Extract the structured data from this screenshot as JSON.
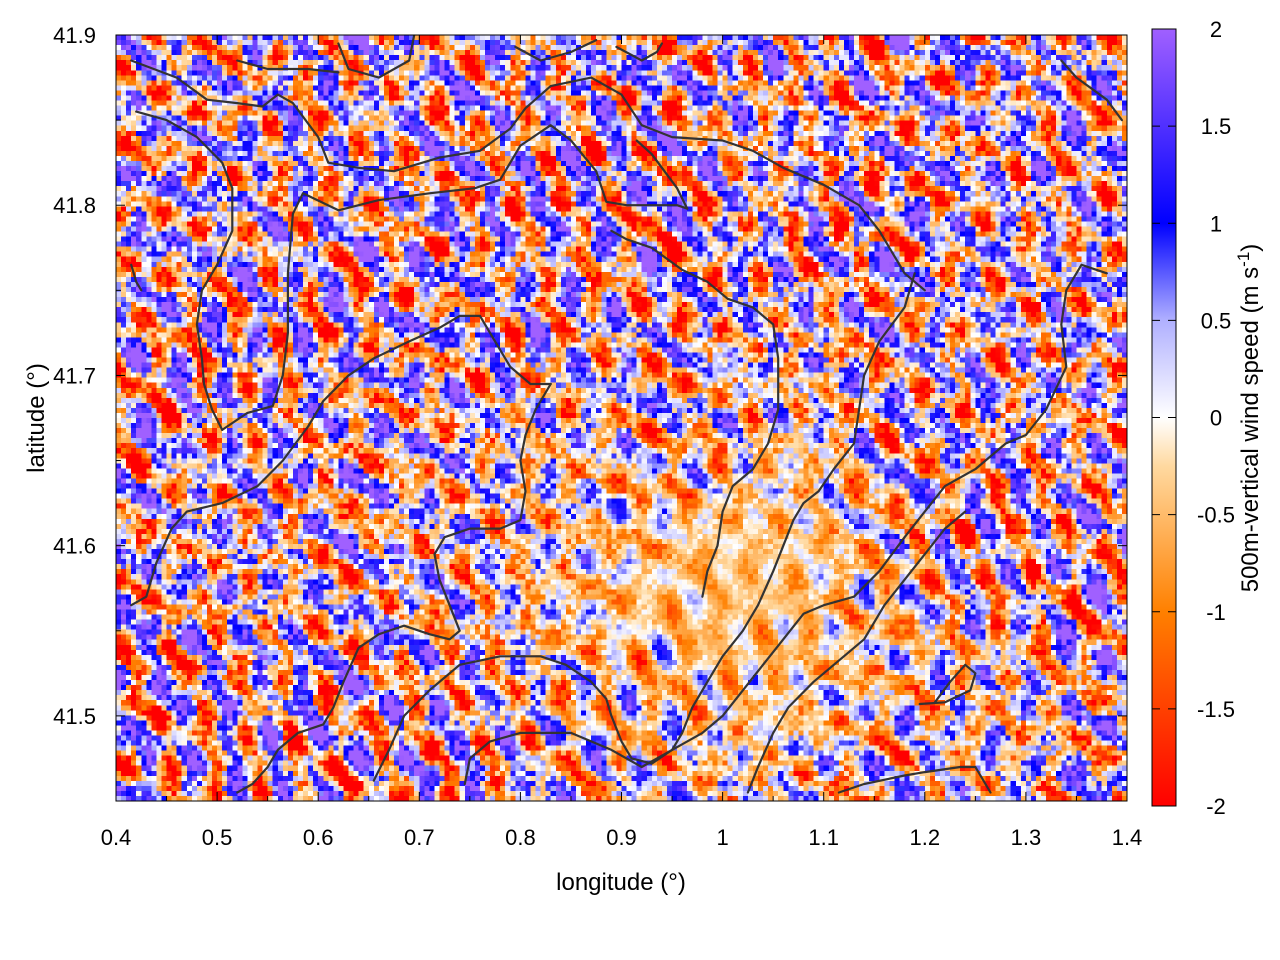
{
  "chart_data": {
    "type": "heatmap",
    "title": "",
    "xlabel": "longitude (°)",
    "ylabel": "latitude (°)",
    "colorbar": {
      "label_main": "500m-vertical wind speed (m s",
      "label_sup": "-1",
      "label_close": ")",
      "range": [
        -2,
        2
      ],
      "ticks": [
        {
          "value": 2,
          "label": "2"
        },
        {
          "value": 1.5,
          "label": "1.5"
        },
        {
          "value": 1,
          "label": "1"
        },
        {
          "value": 0.5,
          "label": "0.5"
        },
        {
          "value": 0,
          "label": "0"
        },
        {
          "value": -0.5,
          "label": "-0.5"
        },
        {
          "value": -1,
          "label": "-1"
        },
        {
          "value": -1.5,
          "label": "-1.5"
        },
        {
          "value": -2,
          "label": "-2"
        }
      ],
      "colors": [
        {
          "value": -2,
          "color": "#ff0000"
        },
        {
          "value": -1,
          "color": "#ff8000"
        },
        {
          "value": -0.25,
          "color": "#ffd9a0"
        },
        {
          "value": 0,
          "color": "#ffffff"
        },
        {
          "value": 0.5,
          "color": "#b0b0ff"
        },
        {
          "value": 1,
          "color": "#0000ff"
        },
        {
          "value": 2,
          "color": "#a060ff"
        }
      ]
    },
    "x_range": [
      0.4,
      1.4
    ],
    "y_range": [
      41.45,
      41.9
    ],
    "x_ticks": [
      {
        "value": 0.4,
        "label": "0.4"
      },
      {
        "value": 0.5,
        "label": "0.5"
      },
      {
        "value": 0.6,
        "label": "0.6"
      },
      {
        "value": 0.7,
        "label": "0.7"
      },
      {
        "value": 0.8,
        "label": "0.8"
      },
      {
        "value": 0.9,
        "label": "0.9"
      },
      {
        "value": 1.0,
        "label": "1"
      },
      {
        "value": 1.1,
        "label": "1.1"
      },
      {
        "value": 1.2,
        "label": "1.2"
      },
      {
        "value": 1.3,
        "label": "1.3"
      },
      {
        "value": 1.4,
        "label": "1.4"
      }
    ],
    "y_ticks": [
      {
        "value": 41.5,
        "label": "41.5"
      },
      {
        "value": 41.6,
        "label": "41.6"
      },
      {
        "value": 41.7,
        "label": "41.7"
      },
      {
        "value": 41.8,
        "label": "41.8"
      },
      {
        "value": 41.9,
        "label": "41.9"
      }
    ],
    "grid": false,
    "field_note_values_range": [
      -2,
      2
    ],
    "contours": [
      [
        [
          0.415,
          41.885
        ],
        [
          0.46,
          41.875
        ],
        [
          0.49,
          41.862
        ],
        [
          0.52,
          41.86
        ],
        [
          0.545,
          41.858
        ],
        [
          0.56,
          41.865
        ],
        [
          0.575,
          41.86
        ],
        [
          0.6,
          41.84
        ],
        [
          0.61,
          41.825
        ],
        [
          0.64,
          41.822
        ],
        [
          0.675,
          41.82
        ],
        [
          0.72,
          41.828
        ],
        [
          0.76,
          41.832
        ],
        [
          0.79,
          41.845
        ],
        [
          0.805,
          41.857
        ],
        [
          0.83,
          41.87
        ],
        [
          0.87,
          41.875
        ],
        [
          0.9,
          41.865
        ],
        [
          0.92,
          41.847
        ],
        [
          0.95,
          41.84
        ],
        [
          1.0,
          41.838
        ],
        [
          1.03,
          41.832
        ],
        [
          1.06,
          41.822
        ],
        [
          1.1,
          41.812
        ],
        [
          1.135,
          41.8
        ],
        [
          1.155,
          41.785
        ],
        [
          1.18,
          41.76
        ],
        [
          1.2,
          41.75
        ]
      ],
      [
        [
          0.42,
          41.855
        ],
        [
          0.45,
          41.85
        ],
        [
          0.48,
          41.84
        ],
        [
          0.505,
          41.825
        ],
        [
          0.515,
          41.81
        ],
        [
          0.515,
          41.785
        ],
        [
          0.5,
          41.765
        ],
        [
          0.485,
          41.75
        ],
        [
          0.48,
          41.73
        ],
        [
          0.485,
          41.71
        ],
        [
          0.487,
          41.695
        ],
        [
          0.495,
          41.68
        ],
        [
          0.505,
          41.668
        ]
      ],
      [
        [
          0.505,
          41.668
        ],
        [
          0.53,
          41.678
        ],
        [
          0.555,
          41.682
        ],
        [
          0.565,
          41.7
        ],
        [
          0.57,
          41.725
        ],
        [
          0.57,
          41.76
        ],
        [
          0.575,
          41.795
        ],
        [
          0.585,
          41.807
        ],
        [
          0.62,
          41.797
        ],
        [
          0.66,
          41.803
        ],
        [
          0.71,
          41.807
        ],
        [
          0.755,
          41.81
        ],
        [
          0.78,
          41.815
        ],
        [
          0.8,
          41.835
        ],
        [
          0.83,
          41.847
        ],
        [
          0.85,
          41.838
        ],
        [
          0.875,
          41.82
        ],
        [
          0.885,
          41.802
        ],
        [
          0.905,
          41.8
        ],
        [
          0.93,
          41.8
        ],
        [
          0.955,
          41.8
        ],
        [
          0.965,
          41.798
        ]
      ],
      [
        [
          0.965,
          41.798
        ],
        [
          0.955,
          41.81
        ],
        [
          0.93,
          41.83
        ],
        [
          0.915,
          41.838
        ]
      ],
      [
        [
          0.89,
          41.785
        ],
        [
          0.905,
          41.78
        ],
        [
          0.93,
          41.775
        ],
        [
          0.96,
          41.762
        ],
        [
          0.985,
          41.755
        ],
        [
          1.005,
          41.745
        ],
        [
          1.03,
          41.74
        ],
        [
          1.05,
          41.73
        ],
        [
          1.055,
          41.71
        ],
        [
          1.055,
          41.68
        ],
        [
          1.045,
          41.66
        ],
        [
          1.03,
          41.645
        ],
        [
          1.01,
          41.635
        ],
        [
          1.0,
          41.62
        ],
        [
          0.995,
          41.6
        ],
        [
          0.985,
          41.585
        ],
        [
          0.98,
          41.57
        ]
      ],
      [
        [
          0.415,
          41.565
        ],
        [
          0.43,
          41.57
        ],
        [
          0.44,
          41.59
        ],
        [
          0.455,
          41.61
        ],
        [
          0.47,
          41.62
        ],
        [
          0.505,
          41.625
        ],
        [
          0.54,
          41.635
        ],
        [
          0.565,
          41.65
        ],
        [
          0.59,
          41.67
        ],
        [
          0.605,
          41.685
        ],
        [
          0.63,
          41.7
        ],
        [
          0.655,
          41.71
        ],
        [
          0.69,
          41.72
        ],
        [
          0.72,
          41.728
        ],
        [
          0.74,
          41.735
        ],
        [
          0.76,
          41.735
        ],
        [
          0.775,
          41.72
        ],
        [
          0.79,
          41.705
        ],
        [
          0.81,
          41.695
        ],
        [
          0.83,
          41.695
        ]
      ],
      [
        [
          0.83,
          41.695
        ],
        [
          0.815,
          41.68
        ],
        [
          0.805,
          41.665
        ],
        [
          0.8,
          41.65
        ],
        [
          0.805,
          41.632
        ],
        [
          0.8,
          41.615
        ],
        [
          0.78,
          41.61
        ],
        [
          0.75,
          41.61
        ],
        [
          0.725,
          41.605
        ],
        [
          0.715,
          41.595
        ],
        [
          0.72,
          41.58
        ],
        [
          0.73,
          41.565
        ],
        [
          0.74,
          41.55
        ],
        [
          0.73,
          41.545
        ],
        [
          0.71,
          41.548
        ],
        [
          0.685,
          41.553
        ],
        [
          0.66,
          41.548
        ],
        [
          0.64,
          41.54
        ],
        [
          0.625,
          41.52
        ],
        [
          0.615,
          41.505
        ],
        [
          0.605,
          41.495
        ]
      ],
      [
        [
          0.605,
          41.495
        ],
        [
          0.58,
          41.49
        ],
        [
          0.56,
          41.48
        ],
        [
          0.55,
          41.47
        ],
        [
          0.535,
          41.46
        ],
        [
          0.52,
          41.455
        ]
      ],
      [
        [
          0.655,
          41.462
        ],
        [
          0.67,
          41.48
        ],
        [
          0.685,
          41.5
        ],
        [
          0.71,
          41.515
        ],
        [
          0.74,
          41.53
        ],
        [
          0.78,
          41.535
        ],
        [
          0.8,
          41.535
        ],
        [
          0.82,
          41.535
        ],
        [
          0.845,
          41.53
        ],
        [
          0.87,
          41.52
        ],
        [
          0.885,
          41.51
        ],
        [
          0.89,
          41.5
        ],
        [
          0.9,
          41.485
        ],
        [
          0.91,
          41.475
        ],
        [
          0.93,
          41.472
        ],
        [
          0.95,
          41.48
        ],
        [
          0.96,
          41.49
        ],
        [
          0.97,
          41.505
        ],
        [
          0.985,
          41.52
        ],
        [
          1.0,
          41.535
        ],
        [
          1.02,
          41.55
        ],
        [
          1.035,
          41.565
        ],
        [
          1.05,
          41.585
        ],
        [
          1.06,
          41.6
        ],
        [
          1.07,
          41.615
        ],
        [
          1.08,
          41.625
        ],
        [
          1.095,
          41.632
        ],
        [
          1.11,
          41.645
        ],
        [
          1.13,
          41.66
        ],
        [
          1.135,
          41.68
        ],
        [
          1.14,
          41.7
        ],
        [
          1.155,
          41.72
        ],
        [
          1.18,
          41.74
        ],
        [
          1.19,
          41.76
        ]
      ],
      [
        [
          0.745,
          41.46
        ],
        [
          0.75,
          41.475
        ],
        [
          0.77,
          41.485
        ],
        [
          0.8,
          41.49
        ],
        [
          0.85,
          41.49
        ],
        [
          0.89,
          41.48
        ],
        [
          0.92,
          41.47
        ],
        [
          0.95,
          41.48
        ],
        [
          0.98,
          41.49
        ],
        [
          1.0,
          41.5
        ],
        [
          1.02,
          41.515
        ],
        [
          1.04,
          41.53
        ],
        [
          1.06,
          41.545
        ],
        [
          1.08,
          41.56
        ],
        [
          1.1,
          41.565
        ],
        [
          1.13,
          41.57
        ],
        [
          1.155,
          41.585
        ],
        [
          1.18,
          41.605
        ],
        [
          1.2,
          41.62
        ],
        [
          1.22,
          41.635
        ],
        [
          1.25,
          41.645
        ],
        [
          1.28,
          41.66
        ],
        [
          1.3,
          41.665
        ],
        [
          1.32,
          41.68
        ],
        [
          1.34,
          41.705
        ],
        [
          1.335,
          41.73
        ],
        [
          1.34,
          41.75
        ],
        [
          1.355,
          41.765
        ],
        [
          1.38,
          41.76
        ]
      ],
      [
        [
          1.025,
          41.455
        ],
        [
          1.035,
          41.47
        ],
        [
          1.05,
          41.49
        ],
        [
          1.065,
          41.505
        ],
        [
          1.09,
          41.52
        ],
        [
          1.11,
          41.53
        ],
        [
          1.14,
          41.545
        ],
        [
          1.16,
          41.565
        ],
        [
          1.18,
          41.58
        ],
        [
          1.2,
          41.595
        ],
        [
          1.22,
          41.61
        ],
        [
          1.24,
          41.62
        ]
      ],
      [
        [
          1.195,
          41.507
        ],
        [
          1.22,
          41.508
        ],
        [
          1.245,
          41.515
        ],
        [
          1.25,
          41.525
        ],
        [
          1.24,
          41.53
        ],
        [
          1.225,
          41.52
        ],
        [
          1.21,
          41.508
        ]
      ],
      [
        [
          1.115,
          41.455
        ],
        [
          1.14,
          41.46
        ],
        [
          1.18,
          41.465
        ],
        [
          1.2,
          41.467
        ],
        [
          1.235,
          41.47
        ],
        [
          1.25,
          41.47
        ],
        [
          1.265,
          41.455
        ]
      ],
      [
        [
          1.335,
          41.885
        ],
        [
          1.35,
          41.875
        ],
        [
          1.38,
          41.862
        ],
        [
          1.395,
          41.85
        ]
      ],
      [
        [
          0.52,
          41.885
        ],
        [
          0.55,
          41.88
        ],
        [
          0.59,
          41.88
        ],
        [
          0.62,
          41.878
        ]
      ],
      [
        [
          0.62,
          41.895
        ],
        [
          0.63,
          41.88
        ],
        [
          0.66,
          41.875
        ],
        [
          0.69,
          41.885
        ],
        [
          0.695,
          41.9
        ]
      ],
      [
        [
          0.795,
          41.893
        ],
        [
          0.82,
          41.885
        ],
        [
          0.85,
          41.89
        ],
        [
          0.875,
          41.897
        ]
      ],
      [
        [
          0.895,
          41.893
        ],
        [
          0.92,
          41.885
        ],
        [
          0.935,
          41.89
        ],
        [
          0.94,
          41.895
        ]
      ],
      [
        [
          0.415,
          41.765
        ],
        [
          0.42,
          41.755
        ],
        [
          0.425,
          41.75
        ]
      ]
    ]
  }
}
